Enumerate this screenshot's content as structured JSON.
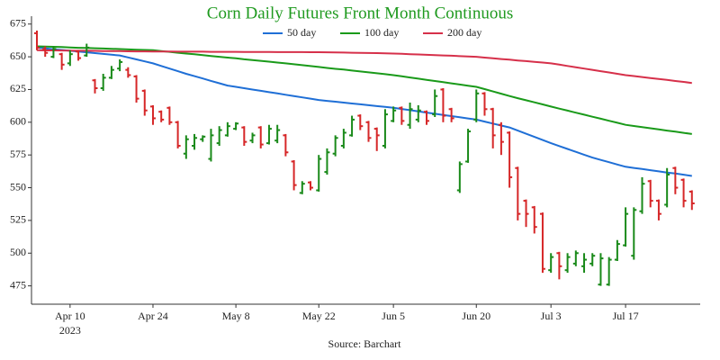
{
  "chart_data": {
    "type": "ohlc",
    "title": "Corn Daily Futures Front Month Continuous",
    "source": "Source: Barchart",
    "x_sublabel": "2023",
    "categories": [
      null,
      null,
      null,
      null,
      "Apr 10",
      null,
      null,
      null,
      null,
      null,
      null,
      null,
      null,
      null,
      "Apr 24",
      null,
      null,
      null,
      null,
      null,
      null,
      null,
      null,
      null,
      "May 8",
      null,
      null,
      null,
      null,
      null,
      null,
      null,
      null,
      null,
      "May 22",
      null,
      null,
      null,
      null,
      null,
      null,
      null,
      null,
      "Jun 5",
      null,
      null,
      null,
      null,
      null,
      null,
      null,
      null,
      null,
      "Jun 20",
      null,
      null,
      null,
      null,
      null,
      null,
      null,
      null,
      "Jul 3",
      null,
      null,
      null,
      null,
      null,
      null,
      null,
      null,
      "Jul 17",
      null,
      null,
      null,
      null,
      null,
      null,
      null,
      null
    ],
    "up_color": "#1a8a1a",
    "down_color": "#d62728",
    "open": [
      668,
      656,
      650,
      652,
      645,
      654,
      651,
      632,
      626,
      634,
      641,
      640,
      635,
      624,
      612,
      608,
      611,
      600,
      576,
      582,
      587,
      572,
      584,
      590,
      595,
      596,
      586,
      596,
      584,
      586,
      590,
      570,
      546,
      554,
      548,
      562,
      576,
      582,
      590,
      605,
      600,
      595,
      582,
      601,
      611,
      598,
      602,
      608,
      606,
      625,
      610,
      548,
      570,
      602,
      622,
      610,
      598,
      592,
      565,
      540,
      535,
      530,
      487,
      500,
      487,
      492,
      490,
      492,
      476,
      476,
      495,
      506,
      498,
      532,
      555,
      540,
      537,
      565,
      556,
      547
    ],
    "high": [
      670,
      658,
      658,
      653,
      655,
      655,
      660,
      633,
      637,
      643,
      648,
      642,
      636,
      625,
      613,
      609,
      612,
      601,
      590,
      591,
      590,
      595,
      597,
      600,
      600,
      597,
      592,
      597,
      598,
      598,
      591,
      571,
      555,
      555,
      575,
      580,
      590,
      595,
      605,
      606,
      601,
      596,
      610,
      612,
      612,
      615,
      613,
      609,
      625,
      626,
      611,
      570,
      595,
      625,
      623,
      611,
      600,
      593,
      566,
      541,
      536,
      531,
      500,
      501,
      500,
      502,
      500,
      500,
      500,
      497,
      510,
      535,
      535,
      558,
      556,
      541,
      565,
      566,
      557,
      548
    ],
    "low": [
      655,
      650,
      649,
      640,
      643,
      647,
      650,
      622,
      624,
      633,
      639,
      634,
      615,
      605,
      598,
      600,
      598,
      580,
      572,
      579,
      585,
      570,
      582,
      589,
      594,
      582,
      584,
      580,
      583,
      584,
      574,
      548,
      545,
      548,
      547,
      560,
      574,
      580,
      589,
      594,
      585,
      578,
      580,
      600,
      598,
      595,
      600,
      598,
      604,
      600,
      600,
      546,
      569,
      600,
      605,
      580,
      575,
      550,
      525,
      520,
      515,
      485,
      485,
      480,
      485,
      490,
      485,
      490,
      475,
      475,
      494,
      505,
      495,
      530,
      535,
      525,
      535,
      545,
      535,
      533
    ],
    "close": [
      657,
      653,
      656,
      644,
      652,
      649,
      657,
      626,
      634,
      640,
      646,
      636,
      618,
      609,
      603,
      602,
      600,
      582,
      587,
      588,
      589,
      590,
      594,
      597,
      599,
      585,
      590,
      583,
      595,
      594,
      577,
      552,
      553,
      550,
      572,
      577,
      588,
      592,
      602,
      597,
      588,
      590,
      606,
      609,
      601,
      610,
      609,
      601,
      620,
      605,
      603,
      568,
      593,
      622,
      610,
      590,
      585,
      558,
      530,
      530,
      520,
      488,
      497,
      490,
      497,
      500,
      495,
      498,
      496,
      495,
      507,
      530,
      533,
      553,
      540,
      530,
      560,
      550,
      540,
      538
    ],
    "series": [
      {
        "name": "50 day",
        "color": "#1f6fd6",
        "values": [
          657,
          656.4,
          655.8,
          655.2,
          654.6,
          654,
          653.4,
          652.8,
          652.2,
          651.6,
          651,
          649.5,
          648,
          646.5,
          645,
          643,
          641,
          639,
          637,
          635.2,
          633.4,
          631.6,
          629.8,
          628,
          627,
          626,
          625,
          624,
          623,
          622,
          621,
          620,
          619,
          618,
          617,
          616.3,
          615.7,
          615,
          614.3,
          613.7,
          613,
          612.3,
          611.7,
          611,
          610.1,
          609.2,
          608.3,
          607.4,
          606.5,
          605.6,
          604.7,
          603.8,
          602.9,
          602,
          600.5,
          599,
          597.5,
          596,
          593.6,
          591.2,
          588.8,
          586.4,
          584,
          581.8,
          579.6,
          577.4,
          575.2,
          573,
          571.2,
          569.5,
          567.7,
          566,
          565.1,
          564.3,
          563.4,
          562.5,
          561.6,
          560.8,
          559.9,
          559
        ]
      },
      {
        "name": "100 day",
        "color": "#1a9a1a",
        "values": [
          658,
          657.8,
          657.6,
          657.4,
          657.1,
          656.9,
          656.7,
          656.5,
          656.3,
          656.1,
          655.9,
          655.6,
          655.4,
          655.2,
          655,
          654.4,
          653.8,
          653.1,
          652.5,
          651.9,
          651.3,
          650.6,
          650,
          649.4,
          648.8,
          648.1,
          647.5,
          646.9,
          646.3,
          645.6,
          645,
          644.3,
          643.6,
          642.9,
          642.2,
          641.5,
          640.8,
          640.2,
          639.5,
          638.8,
          638.1,
          637.4,
          636.7,
          636,
          635.1,
          634.2,
          633.3,
          632.4,
          631.5,
          630.6,
          629.7,
          628.8,
          627.9,
          627,
          625.3,
          623.5,
          621.8,
          620,
          618.4,
          616.8,
          615.2,
          613.6,
          612,
          610.4,
          608.9,
          607.3,
          605.8,
          604.2,
          602.7,
          601.1,
          599.6,
          598,
          597.1,
          596.3,
          595.4,
          594.5,
          593.6,
          592.8,
          591.9,
          591
        ]
      },
      {
        "name": "200 day",
        "color": "#d6304a",
        "values": [
          655,
          654.9,
          654.9,
          654.8,
          654.7,
          654.6,
          654.6,
          654.5,
          654.4,
          654.4,
          654.3,
          654.2,
          654.1,
          654.1,
          654,
          654,
          654,
          653.9,
          653.9,
          653.9,
          653.9,
          653.8,
          653.8,
          653.8,
          653.8,
          653.7,
          653.7,
          653.7,
          653.7,
          653.6,
          653.6,
          653.6,
          653.6,
          653.5,
          653.5,
          653.4,
          653.3,
          653.2,
          653.1,
          653,
          652.9,
          652.8,
          652.6,
          652.5,
          652.3,
          652,
          651.8,
          651.5,
          651.3,
          651,
          650.8,
          650.5,
          650.3,
          650,
          649.4,
          648.9,
          648.3,
          647.8,
          647.2,
          646.7,
          646.1,
          645.6,
          645,
          644,
          643,
          642,
          641,
          640,
          639,
          638,
          637,
          636,
          635.3,
          634.5,
          633.8,
          633,
          632.3,
          631.5,
          630.8,
          630
        ]
      }
    ],
    "ylim": [
      461,
      681
    ],
    "yticks": [
      475,
      500,
      525,
      550,
      575,
      600,
      625,
      650,
      675
    ],
    "grid": false,
    "legend": "top"
  }
}
